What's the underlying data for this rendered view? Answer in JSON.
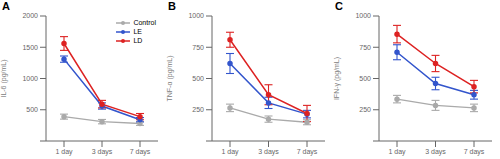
{
  "chart_data": [
    {
      "type": "line",
      "title": "A",
      "ylabel": "IL-6 (pg/mL)",
      "categories": [
        "1 day",
        "3 days",
        "7 days"
      ],
      "ylim": [
        0,
        2000
      ],
      "yticks": [
        {
          "value": 0,
          "label": ""
        },
        500,
        1000,
        1500,
        2000
      ],
      "legend": "upper right",
      "marker": "o",
      "series": [
        {
          "name": "Control",
          "color": "#aaaaaa",
          "values": [
            390,
            310,
            280
          ],
          "errors": [
            40,
            35,
            30
          ]
        },
        {
          "name": "LE",
          "color": "#3355cc",
          "values": [
            1310,
            560,
            340
          ],
          "errors": [
            50,
            50,
            35
          ]
        },
        {
          "name": "LD",
          "color": "#dd2222",
          "values": [
            1560,
            590,
            390
          ],
          "errors": [
            110,
            60,
            50
          ]
        }
      ]
    },
    {
      "type": "line",
      "title": "B",
      "ylabel": "TNF-α (pg/mL)",
      "categories": [
        "1 day",
        "3 days",
        "7 days"
      ],
      "ylim": [
        0,
        1000
      ],
      "yticks": [
        {
          "value": 0,
          "label": ""
        },
        250,
        500,
        750,
        1000
      ],
      "marker": "o",
      "series": [
        {
          "name": "Control",
          "color": "#aaaaaa",
          "values": [
            265,
            175,
            150
          ],
          "errors": [
            30,
            25,
            20
          ]
        },
        {
          "name": "LE",
          "color": "#3355cc",
          "values": [
            620,
            305,
            215
          ],
          "errors": [
            80,
            45,
            30
          ]
        },
        {
          "name": "LD",
          "color": "#dd2222",
          "values": [
            810,
            370,
            220
          ],
          "errors": [
            60,
            80,
            65
          ]
        }
      ]
    },
    {
      "type": "line",
      "title": "C",
      "ylabel": "IFN-γ (pg/mL)",
      "categories": [
        "1 day",
        "3 days",
        "7 days"
      ],
      "ylim": [
        0,
        1000
      ],
      "yticks": [
        {
          "value": 0,
          "label": ""
        },
        250,
        500,
        750,
        1000
      ],
      "marker": "o",
      "series": [
        {
          "name": "Control",
          "color": "#aaaaaa",
          "values": [
            335,
            285,
            265
          ],
          "errors": [
            30,
            40,
            30
          ]
        },
        {
          "name": "LE",
          "color": "#3355cc",
          "values": [
            710,
            460,
            370
          ],
          "errors": [
            60,
            50,
            35
          ]
        },
        {
          "name": "LD",
          "color": "#dd2222",
          "values": [
            855,
            620,
            435
          ],
          "errors": [
            70,
            65,
            50
          ]
        }
      ]
    }
  ]
}
